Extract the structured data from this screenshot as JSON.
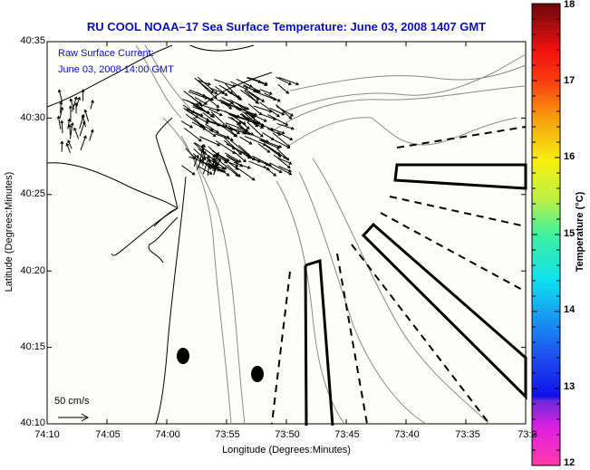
{
  "title": "RU COOL  NOAA–17  Sea Surface Temperature:  June 03, 2008 1407 GMT",
  "legend": {
    "line1": "Raw Surface Current:",
    "line2": "June 03, 2008 14:00 GMT",
    "scale_label": "50 cm/s"
  },
  "axes": {
    "xlabel": "Longitude (Degrees:Minutes)",
    "ylabel": "Latitude (Degrees:Minutes)",
    "xticks": [
      "74:10",
      "74:05",
      "74:00",
      "73:55",
      "73:50",
      "73:45",
      "73:40",
      "73:35",
      "73:3"
    ],
    "yticks": [
      "40:35",
      "40:30",
      "40:25",
      "40:20",
      "40:15",
      "40:10"
    ]
  },
  "colorbar": {
    "title": "Temperature (°C)",
    "ticks": [
      "18",
      "17",
      "16",
      "15",
      "14",
      "13",
      "12"
    ],
    "range": [
      12,
      18
    ]
  },
  "chart_data": {
    "type": "map",
    "title": "RU COOL  NOAA–17  Sea Surface Temperature:  June 03, 2008 1407 GMT",
    "xlabel": "Longitude (Degrees:Minutes)",
    "ylabel": "Latitude (Degrees:Minutes)",
    "xlim": [
      "74:10",
      "73:30"
    ],
    "ylim": [
      "40:10",
      "40:35"
    ],
    "colorbar_range_celsius": [
      12,
      18
    ],
    "features": [
      "coastline",
      "bathymetry contours",
      "surface current vectors",
      "shipping lanes (dashed)",
      "restricted zones (solid outlines)",
      "two marker dots"
    ]
  }
}
